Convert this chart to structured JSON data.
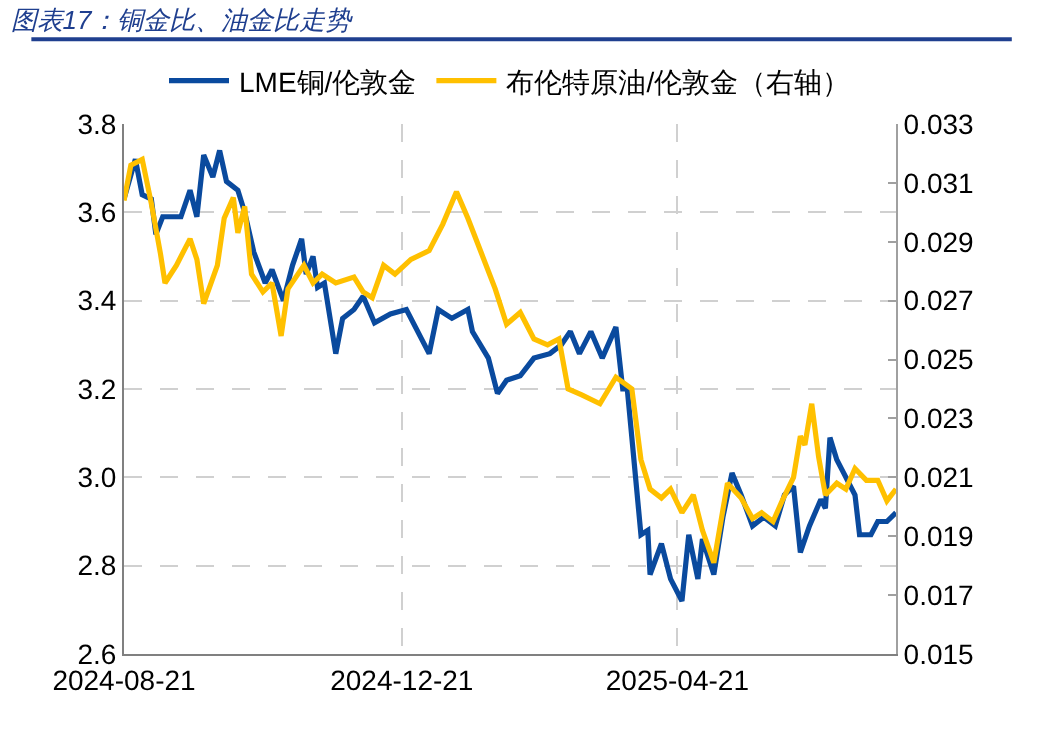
{
  "chart_data": {
    "type": "line",
    "title": "图表17：铜金比、油金比走势",
    "xlim": [
      "2024-08-21",
      "2025-07-26"
    ],
    "xticks": [
      {
        "value": "2024-08-21",
        "label": "2024-08-21"
      },
      {
        "value": "2024-12-21",
        "label": "2024-12-21"
      },
      {
        "value": "2025-04-21",
        "label": "2025-04-21"
      }
    ],
    "ylim": [
      2.6,
      3.8
    ],
    "yticks": [
      2.6,
      2.8,
      {
        "value": 3,
        "label": "3.0"
      },
      3.2,
      3.4,
      3.6,
      3.8
    ],
    "y2lim": [
      0.015,
      0.033
    ],
    "y2ticks": [
      0.015,
      0.017,
      0.019,
      0.021,
      0.023,
      0.025,
      0.027,
      0.029,
      0.031,
      0.033
    ],
    "grid": true,
    "legend": "top",
    "line_style": "solid",
    "marker": "none",
    "series": [
      {
        "name": "LME铜/伦敦金",
        "color": "#0a4a9e",
        "x": [
          "2024-08-21",
          "2024-08-26",
          "2024-08-29",
          "2024-09-02",
          "2024-09-04",
          "2024-09-07",
          "2024-09-15",
          "2024-09-19",
          "2024-09-22",
          "2024-09-25",
          "2024-09-29",
          "2024-10-02",
          "2024-10-05",
          "2024-10-10",
          "2024-10-13",
          "2024-10-17",
          "2024-10-22",
          "2024-10-25",
          "2024-10-30",
          "2024-11-03",
          "2024-11-07",
          "2024-11-09",
          "2024-11-12",
          "2024-11-14",
          "2024-11-17",
          "2024-11-22",
          "2024-11-25",
          "2024-11-30",
          "2024-12-04",
          "2024-12-09",
          "2024-12-16",
          "2024-12-23",
          "2025-01-02",
          "2025-01-06",
          "2025-01-12",
          "2025-01-19",
          "2025-01-21",
          "2025-01-28",
          "2025-02-01",
          "2025-02-05",
          "2025-02-11",
          "2025-02-17",
          "2025-02-24",
          "2025-03-01",
          "2025-03-05",
          "2025-03-09",
          "2025-03-14",
          "2025-03-19",
          "2025-03-25",
          "2025-03-28",
          "2025-03-30",
          "2025-04-01",
          "2025-04-05",
          "2025-04-08",
          "2025-04-09",
          "2025-04-14",
          "2025-04-18",
          "2025-04-23",
          "2025-04-26",
          "2025-04-30",
          "2025-05-02",
          "2025-05-07",
          "2025-05-11",
          "2025-05-15",
          "2025-05-19",
          "2025-05-24",
          "2025-05-29",
          "2025-06-03",
          "2025-06-07",
          "2025-06-11",
          "2025-06-14",
          "2025-06-18",
          "2025-06-23",
          "2025-06-25",
          "2025-06-27",
          "2025-06-30",
          "2025-07-03",
          "2025-07-08",
          "2025-07-10",
          "2025-07-15",
          "2025-07-18",
          "2025-07-22",
          "2025-07-26"
        ],
        "values": [
          3.63,
          3.72,
          3.64,
          3.63,
          3.55,
          3.59,
          3.59,
          3.65,
          3.59,
          3.73,
          3.68,
          3.74,
          3.67,
          3.65,
          3.6,
          3.51,
          3.44,
          3.47,
          3.4,
          3.48,
          3.54,
          3.46,
          3.5,
          3.43,
          3.44,
          3.28,
          3.36,
          3.38,
          3.41,
          3.35,
          3.37,
          3.38,
          3.28,
          3.38,
          3.36,
          3.38,
          3.33,
          3.27,
          3.19,
          3.22,
          3.23,
          3.27,
          3.28,
          3.3,
          3.33,
          3.28,
          3.33,
          3.27,
          3.34,
          3.2,
          3.2,
          3.09,
          2.87,
          2.88,
          2.78,
          2.85,
          2.77,
          2.72,
          2.87,
          2.77,
          2.86,
          2.78,
          2.91,
          3.01,
          2.96,
          2.89,
          2.91,
          2.89,
          2.96,
          2.98,
          2.83,
          2.89,
          2.95,
          2.93,
          3.09,
          3.04,
          3.01,
          2.96,
          2.87,
          2.87,
          2.9,
          2.9,
          2.92
        ]
      },
      {
        "name": "布伦特原油/伦敦金（右轴）",
        "color": "#ffc000",
        "axis": "y2",
        "x": [
          "2024-08-21",
          "2024-08-24",
          "2024-08-29",
          "2024-09-02",
          "2024-09-06",
          "2024-09-08",
          "2024-09-13",
          "2024-09-19",
          "2024-09-22",
          "2024-09-25",
          "2024-10-01",
          "2024-10-04",
          "2024-10-08",
          "2024-10-10",
          "2024-10-13",
          "2024-10-16",
          "2024-10-21",
          "2024-10-25",
          "2024-10-29",
          "2024-11-01",
          "2024-11-08",
          "2024-11-12",
          "2024-11-16",
          "2024-11-22",
          "2024-11-30",
          "2024-12-04",
          "2024-12-08",
          "2024-12-13",
          "2024-12-18",
          "2024-12-25",
          "2025-01-02",
          "2025-01-08",
          "2025-01-14",
          "2025-01-19",
          "2025-01-25",
          "2025-01-31",
          "2025-02-05",
          "2025-02-11",
          "2025-02-17",
          "2025-02-23",
          "2025-02-28",
          "2025-03-04",
          "2025-03-10",
          "2025-03-18",
          "2025-03-25",
          "2025-04-01",
          "2025-04-05",
          "2025-04-09",
          "2025-04-14",
          "2025-04-18",
          "2025-04-23",
          "2025-04-28",
          "2025-05-02",
          "2025-05-07",
          "2025-05-13",
          "2025-05-19",
          "2025-05-24",
          "2025-05-28",
          "2025-06-02",
          "2025-06-06",
          "2025-06-11",
          "2025-06-14",
          "2025-06-16",
          "2025-06-19",
          "2025-06-22",
          "2025-06-25",
          "2025-06-30",
          "2025-07-04",
          "2025-07-08",
          "2025-07-13",
          "2025-07-18",
          "2025-07-22",
          "2025-07-26"
        ],
        "values": [
          0.0304,
          0.0316,
          0.0318,
          0.0303,
          0.0286,
          0.0276,
          0.0282,
          0.0291,
          0.0284,
          0.0269,
          0.0282,
          0.0298,
          0.0305,
          0.0293,
          0.0302,
          0.0279,
          0.0273,
          0.0276,
          0.0258,
          0.0274,
          0.0282,
          0.0276,
          0.0279,
          0.0276,
          0.0278,
          0.0273,
          0.0271,
          0.0282,
          0.0279,
          0.0284,
          0.0287,
          0.0296,
          0.0307,
          0.0298,
          0.0286,
          0.0274,
          0.0262,
          0.0266,
          0.0257,
          0.0255,
          0.0257,
          0.024,
          0.0238,
          0.0235,
          0.0244,
          0.024,
          0.0216,
          0.0206,
          0.0203,
          0.0206,
          0.0198,
          0.0204,
          0.0192,
          0.0181,
          0.0208,
          0.0203,
          0.0196,
          0.0198,
          0.0195,
          0.0202,
          0.021,
          0.0224,
          0.0221,
          0.0235,
          0.0217,
          0.0204,
          0.0208,
          0.0206,
          0.0213,
          0.0209,
          0.0209,
          0.0202,
          0.0206
        ]
      }
    ]
  }
}
